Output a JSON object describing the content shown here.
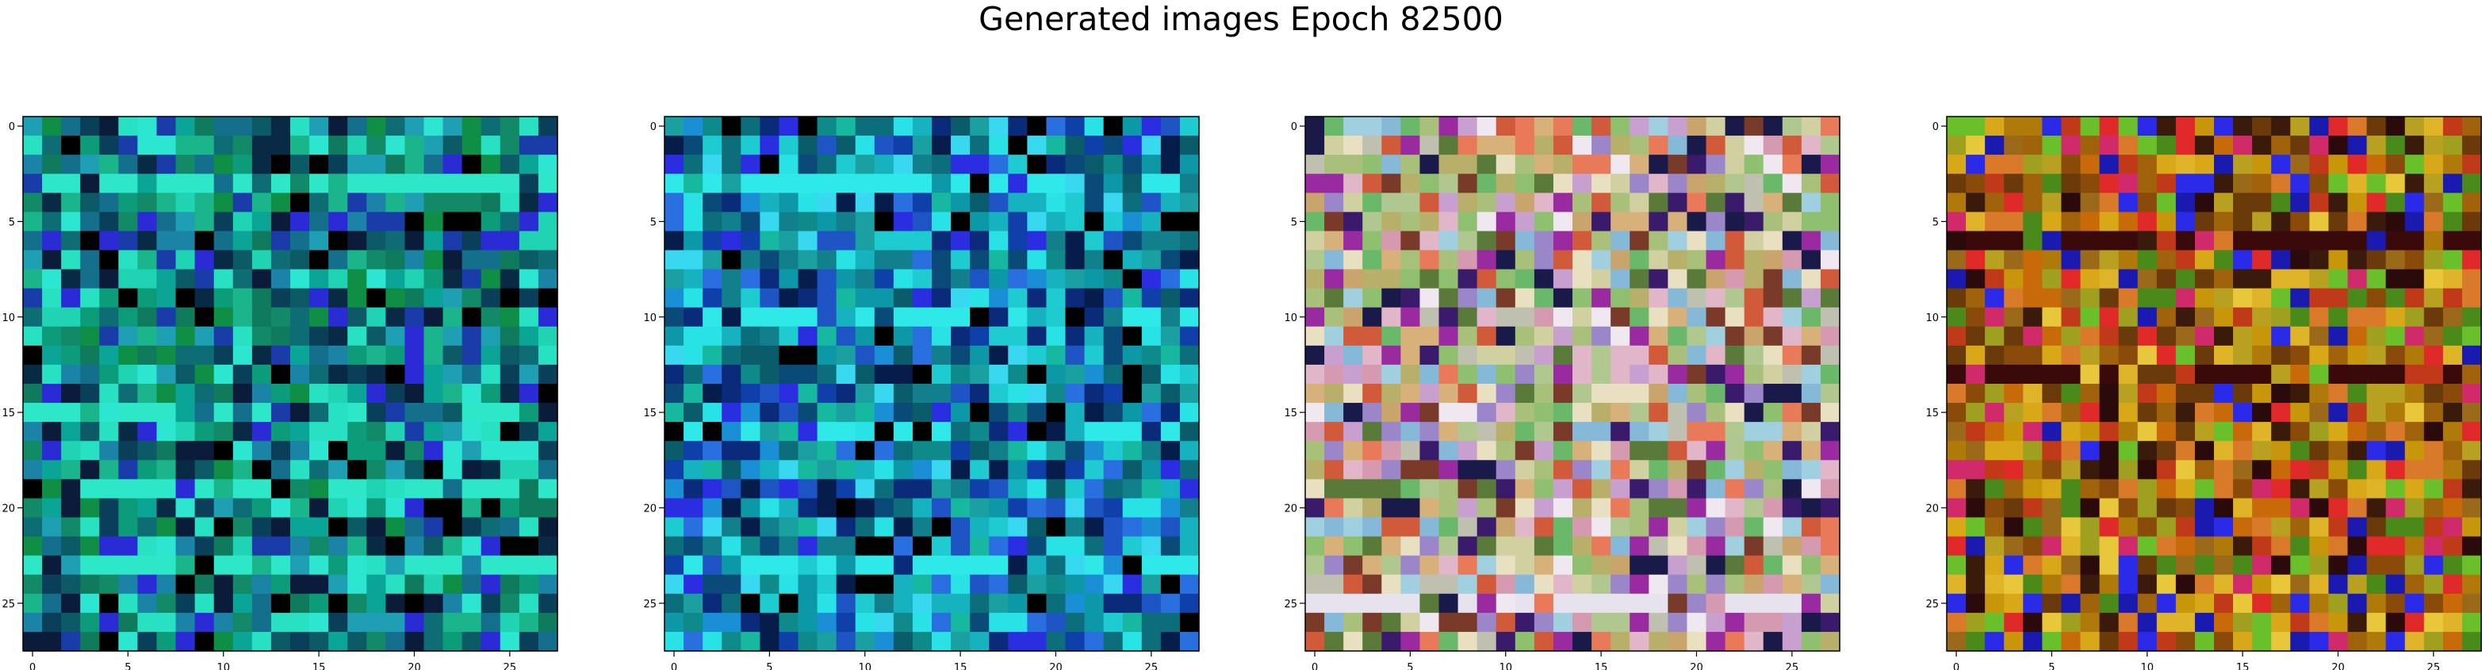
{
  "figure": {
    "title": "Generated images Epoch 82500"
  },
  "chart_data": [
    {
      "type": "heatmap",
      "description_of_content": "28x28 RGB generated image",
      "grid_size": [
        28,
        28
      ],
      "xticks": [
        0,
        5,
        10,
        15,
        20,
        25
      ],
      "yticks": [
        0,
        5,
        10,
        15,
        20,
        25
      ],
      "xlim": [
        -0.5,
        27.5
      ],
      "ylim": [
        27.5,
        -0.5
      ],
      "palette": [
        "#0f7a5c",
        "#128a68",
        "#0c9c7a",
        "#1bb58c",
        "#0aa597",
        "#1fd3b3",
        "#28e0c2",
        "#2de6d2",
        "#0e6d74",
        "#0b5a66",
        "#136f8b",
        "#1b84a6",
        "#1f9fb4",
        "#0a3f5a",
        "#082a45",
        "#1a3ca8",
        "#2b2bd6",
        "#0b1c3a",
        "#000000",
        "#0e8f45"
      ],
      "highlight_rows": [
        3,
        15,
        19,
        23
      ],
      "highlight_color": "#2ee6c8"
    },
    {
      "type": "heatmap",
      "description_of_content": "28x28 RGB generated image",
      "grid_size": [
        28,
        28
      ],
      "xticks": [
        0,
        5,
        10,
        15,
        20,
        25
      ],
      "yticks": [
        0,
        5,
        10,
        15,
        20,
        25
      ],
      "xlim": [
        -0.5,
        27.5
      ],
      "ylim": [
        27.5,
        -0.5
      ],
      "palette": [
        "#127f8c",
        "#0c98a6",
        "#17b2bf",
        "#1ecbd1",
        "#28e2e6",
        "#1a8fd6",
        "#2a6fe0",
        "#1f54c4",
        "#0f3fa8",
        "#0a2a7a",
        "#061c4a",
        "#0c6e7a",
        "#0a5c6a",
        "#1aa0a0",
        "#0e8a8a",
        "#2b2ee0",
        "#000000",
        "#38d9f0",
        "#0a4a78",
        "#16b8a0"
      ],
      "highlight_rows": [
        3,
        10,
        16,
        23
      ],
      "highlight_color": "#2fe8e8"
    },
    {
      "type": "heatmap",
      "description_of_content": "28x28 RGB generated image",
      "grid_size": [
        28,
        28
      ],
      "xticks": [
        0,
        5,
        10,
        15,
        20,
        25
      ],
      "yticks": [
        0,
        5,
        10,
        15,
        20,
        25
      ],
      "xlim": [
        -0.5,
        27.5
      ],
      "ylim": [
        27.5,
        -0.5
      ],
      "palette": [
        "#d8b07a",
        "#c9a46c",
        "#b8b06a",
        "#a8c07a",
        "#d69ab0",
        "#e0b6c8",
        "#c8a0d0",
        "#9a86c8",
        "#86b8d8",
        "#e8e0c0",
        "#d0d0a0",
        "#b0c890",
        "#8ec070",
        "#6ab86a",
        "#e87a5a",
        "#d05a3a",
        "#7a3a2a",
        "#3a1a6a",
        "#1a1a4a",
        "#9a2aa0",
        "#5a7a3a",
        "#f0e8f0",
        "#a0d0e0",
        "#c0c0b0"
      ],
      "highlight_rows": [
        25
      ],
      "highlight_color": "#e6e2ee"
    },
    {
      "type": "heatmap",
      "description_of_content": "28x28 RGB generated image",
      "grid_size": [
        28,
        28
      ],
      "xticks": [
        0,
        5,
        10,
        15,
        20,
        25
      ],
      "yticks": [
        0,
        5,
        10,
        15,
        20,
        25
      ],
      "xlim": [
        -0.5,
        27.5
      ],
      "ylim": [
        27.5,
        -0.5
      ],
      "palette": [
        "#c8960a",
        "#b07a0a",
        "#a0620a",
        "#d8a818",
        "#e0b428",
        "#c86a0a",
        "#8a4a0a",
        "#6a3a0a",
        "#9a6a1a",
        "#b8a020",
        "#d87a2a",
        "#c03a1a",
        "#2a0a0a",
        "#3a1a0a",
        "#1a1ab0",
        "#2a2ae8",
        "#e02a2a",
        "#d02a6a",
        "#6ac02a",
        "#4a8a1a",
        "#e8c83a",
        "#a0a020"
      ],
      "highlight_rows": [
        6,
        13
      ],
      "highlight_color": "#3a0a0a"
    }
  ]
}
